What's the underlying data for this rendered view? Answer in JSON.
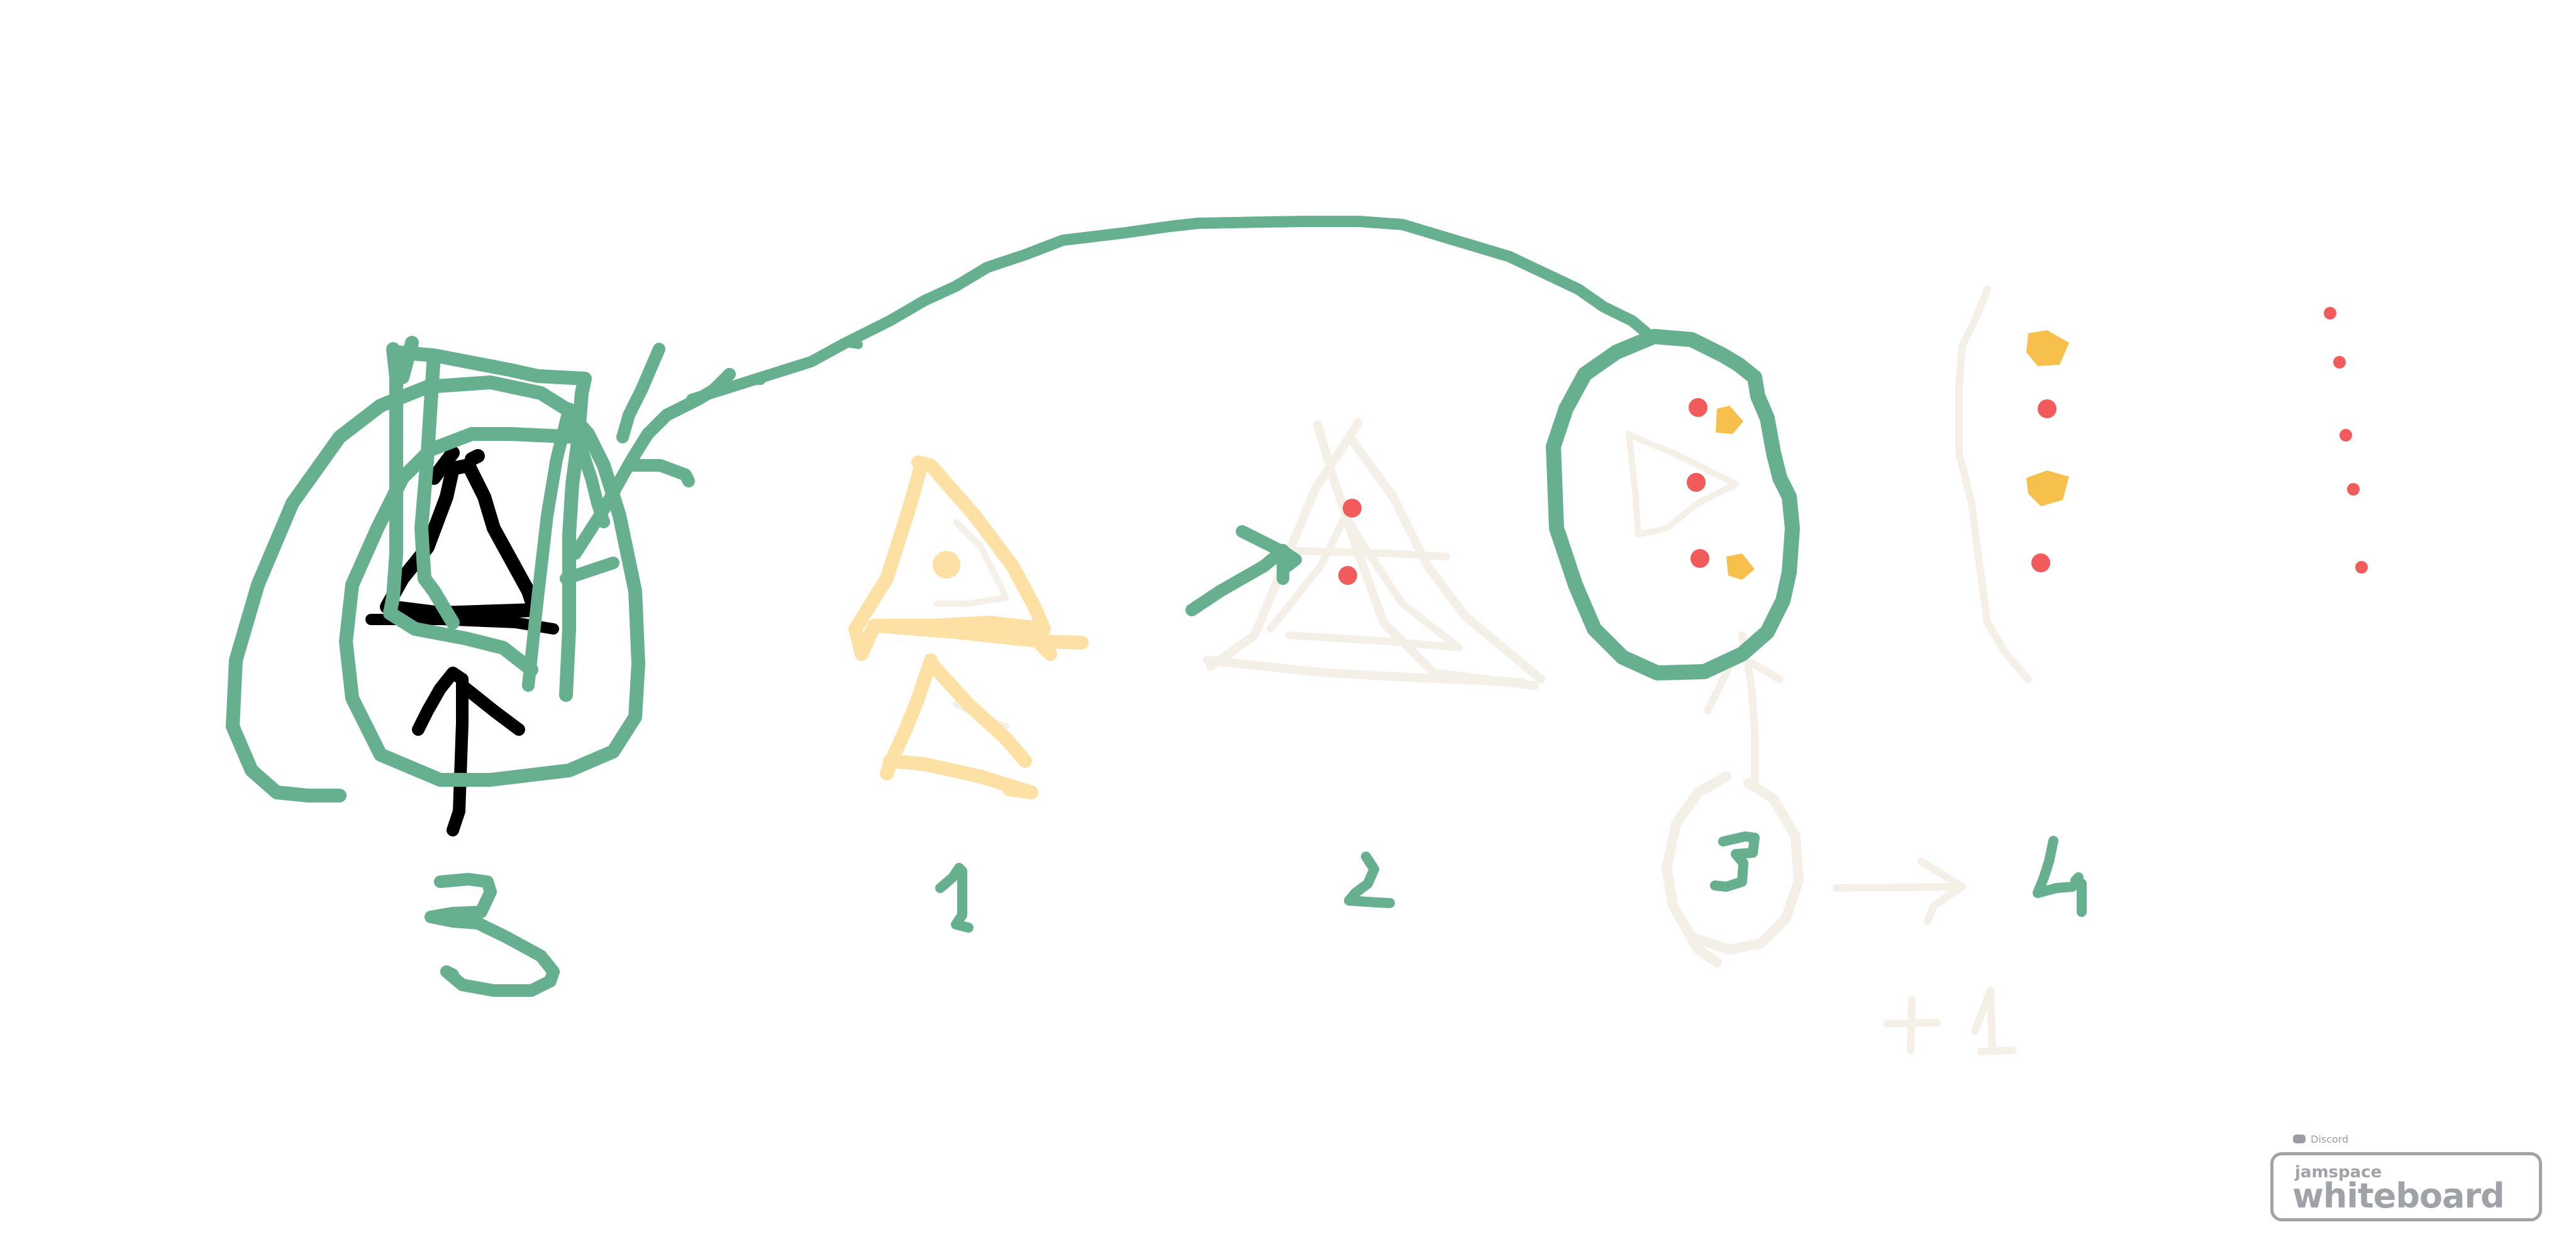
{
  "app": {
    "badge_platform": "Discord",
    "badge_name_small": "jamspace",
    "badge_name_large": "whiteboard"
  },
  "canvas": {
    "background": "#ffffff"
  },
  "colors": {
    "green": "#67b08f",
    "black": "#000000",
    "peach": "#fde1a4",
    "cream": "#f4f0e7",
    "red": "#f25b5b",
    "orange": "#f7c04d",
    "badge_gray": "#9fa2a7"
  },
  "labels": {
    "group_three": "3",
    "one": "1",
    "two": "2",
    "three_circled": "3",
    "four": "4",
    "plus_one": "+1"
  },
  "icons": {
    "discord": "discord-icon",
    "arrow_right": "arrow-right-icon"
  }
}
